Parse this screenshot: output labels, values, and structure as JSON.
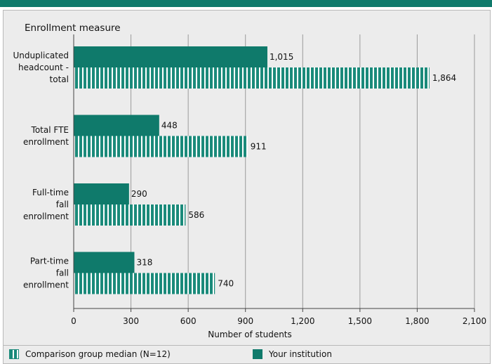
{
  "chart_data": {
    "type": "bar",
    "orientation": "horizontal",
    "title": "Enrollment measure",
    "xlabel": "Number of students",
    "xlim": [
      0,
      2100
    ],
    "x_ticks": [
      "0",
      "300",
      "600",
      "900",
      "1,200",
      "1,500",
      "1,800",
      "2,100"
    ],
    "x_tick_values": [
      0,
      300,
      600,
      900,
      1200,
      1500,
      1800,
      2100
    ],
    "grid": true,
    "categories": [
      [
        "Unduplicated",
        "headcount -",
        "total"
      ],
      [
        "Total FTE",
        "enrollment"
      ],
      [
        "Full-time",
        "fall",
        "enrollment"
      ],
      [
        "Part-time",
        "fall",
        "enrollment"
      ]
    ],
    "series": [
      {
        "name": "Your institution",
        "color": "#0f7a6b",
        "pattern": "solid",
        "values": [
          1015,
          448,
          290,
          318
        ],
        "labels": [
          "1,015",
          "448",
          "290",
          "318"
        ]
      },
      {
        "name": "Comparison group median (N=12)",
        "color": "#1a8a7a",
        "pattern": "striped",
        "values": [
          1864,
          911,
          586,
          740
        ],
        "labels": [
          "1,864",
          "911",
          "586",
          "740"
        ]
      }
    ],
    "legend": [
      {
        "label": "Comparison group median (N=12)",
        "pattern": "striped"
      },
      {
        "label": "Your institution",
        "pattern": "solid"
      }
    ],
    "legend_position": "bottom"
  }
}
